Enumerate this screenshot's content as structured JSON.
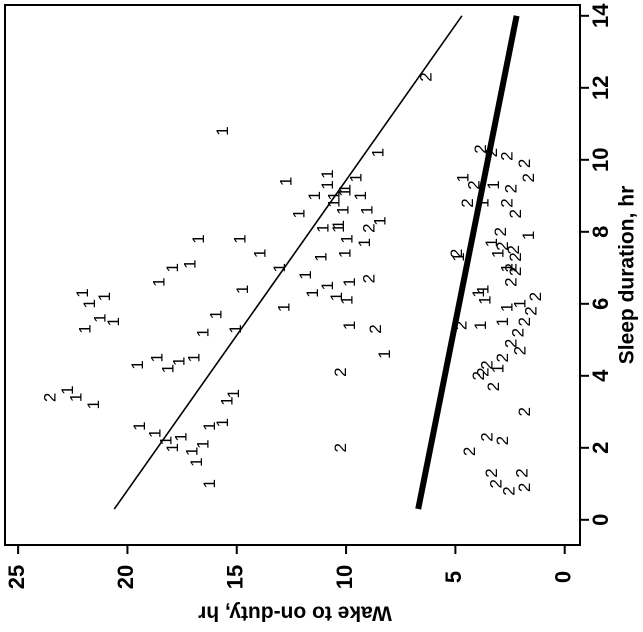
{
  "chart_data": {
    "type": "scatter",
    "xlabel": "Sleep duration, hr",
    "ylabel": "Wake to on-duty, hr",
    "xlim": [
      -0.7,
      14.3
    ],
    "ylim": [
      -0.7,
      25.6
    ],
    "xticks": [
      0,
      2,
      4,
      6,
      8,
      10,
      12,
      14
    ],
    "yticks": [
      0,
      5,
      10,
      15,
      20,
      25
    ],
    "color": "#000000",
    "series": [
      {
        "name": "1",
        "x": [
          3.6,
          3.4,
          3.2,
          5.3,
          5.6,
          5.5,
          6.0,
          6.3,
          6.2,
          4.3,
          4.5,
          4.2,
          2.6,
          2.4,
          2.2,
          2.0,
          2.3,
          1.9,
          1.6,
          2.1,
          2.6,
          1.0,
          2.7,
          3.3,
          3.5,
          4.4,
          4.5,
          5.2,
          5.7,
          5.3,
          6.6,
          7.0,
          7.8,
          7.8,
          7.4,
          7.0,
          6.4,
          5.9,
          6.3,
          6.5,
          6.2,
          6.1,
          7.3,
          6.8,
          8.1,
          8.1,
          8.6,
          8.8,
          9.2,
          9.0,
          9.5,
          8.6,
          8.3,
          7.7,
          7.4,
          6.6,
          5.4,
          4.6,
          10.2,
          9.4,
          10.8,
          8.2,
          5.4,
          4.2,
          7.9,
          5.9,
          6.4,
          9.5,
          6.3,
          7.7,
          7.4,
          8.8,
          9.3,
          5.5,
          6.0,
          6.1,
          7.0,
          7.3,
          7.8,
          9.0,
          9.6,
          9.0,
          8.5,
          7.1,
          9.3,
          9.1
        ],
        "y": [
          22.7,
          22.3,
          21.5,
          21.9,
          21.2,
          20.6,
          21.7,
          22.0,
          21.0,
          19.5,
          18.6,
          18.1,
          19.4,
          18.7,
          18.2,
          17.9,
          17.5,
          17.0,
          16.8,
          16.5,
          16.2,
          16.2,
          15.6,
          15.4,
          15.1,
          17.6,
          16.9,
          16.5,
          15.9,
          15.0,
          18.5,
          17.9,
          16.7,
          14.8,
          13.9,
          13.0,
          14.7,
          12.8,
          11.5,
          10.8,
          10.4,
          9.9,
          11.1,
          11.8,
          11.0,
          10.3,
          10.1,
          10.5,
          10.0,
          9.3,
          9.5,
          9.0,
          8.4,
          9.1,
          10.0,
          9.8,
          9.8,
          8.2,
          8.5,
          12.7,
          15.6,
          10.3,
          3.8,
          3.0,
          1.6,
          2.6,
          3.7,
          4.6,
          3.9,
          3.3,
          3.0,
          3.7,
          3.2,
          2.8,
          2.0,
          3.6,
          2.6,
          4.8,
          9.9,
          10.5,
          10.8,
          11.4,
          12.1,
          17.1,
          10.8,
          10.0
        ]
      },
      {
        "name": "2",
        "x": [
          3.4,
          2.0,
          4.1,
          12.3,
          5.4,
          1.9,
          0.8,
          1.0,
          1.3,
          0.9,
          1.3,
          2.3,
          2.2,
          3.0,
          3.7,
          4.0,
          4.1,
          4.3,
          4.5,
          4.9,
          4.7,
          5.2,
          5.5,
          5.8,
          6.2,
          6.6,
          6.9,
          7.0,
          7.3,
          7.5,
          8.0,
          7.6,
          8.5,
          8.8,
          9.2,
          9.5,
          9.9,
          10.1,
          10.2,
          10.3,
          9.3,
          8.8,
          7.4,
          5.3,
          6.7,
          8.1
        ],
        "y": [
          23.5,
          10.2,
          10.2,
          6.3,
          4.7,
          4.3,
          2.5,
          3.1,
          3.3,
          1.8,
          1.9,
          3.5,
          2.8,
          1.8,
          3.2,
          3.9,
          3.7,
          3.5,
          2.8,
          2.4,
          2.0,
          2.1,
          1.8,
          1.5,
          1.3,
          2.4,
          2.2,
          2.4,
          2.2,
          2.3,
          2.9,
          2.8,
          2.2,
          2.6,
          2.4,
          1.6,
          1.8,
          2.6,
          3.3,
          3.8,
          4.1,
          4.4,
          4.9,
          8.6,
          8.9,
          8.9
        ]
      }
    ],
    "lines": [
      {
        "x": [
          0.3,
          14
        ],
        "y": [
          20.6,
          4.7
        ],
        "width": 1.6
      },
      {
        "x": [
          0.3,
          14
        ],
        "y": [
          6.7,
          2.2
        ],
        "width": 6
      }
    ]
  }
}
